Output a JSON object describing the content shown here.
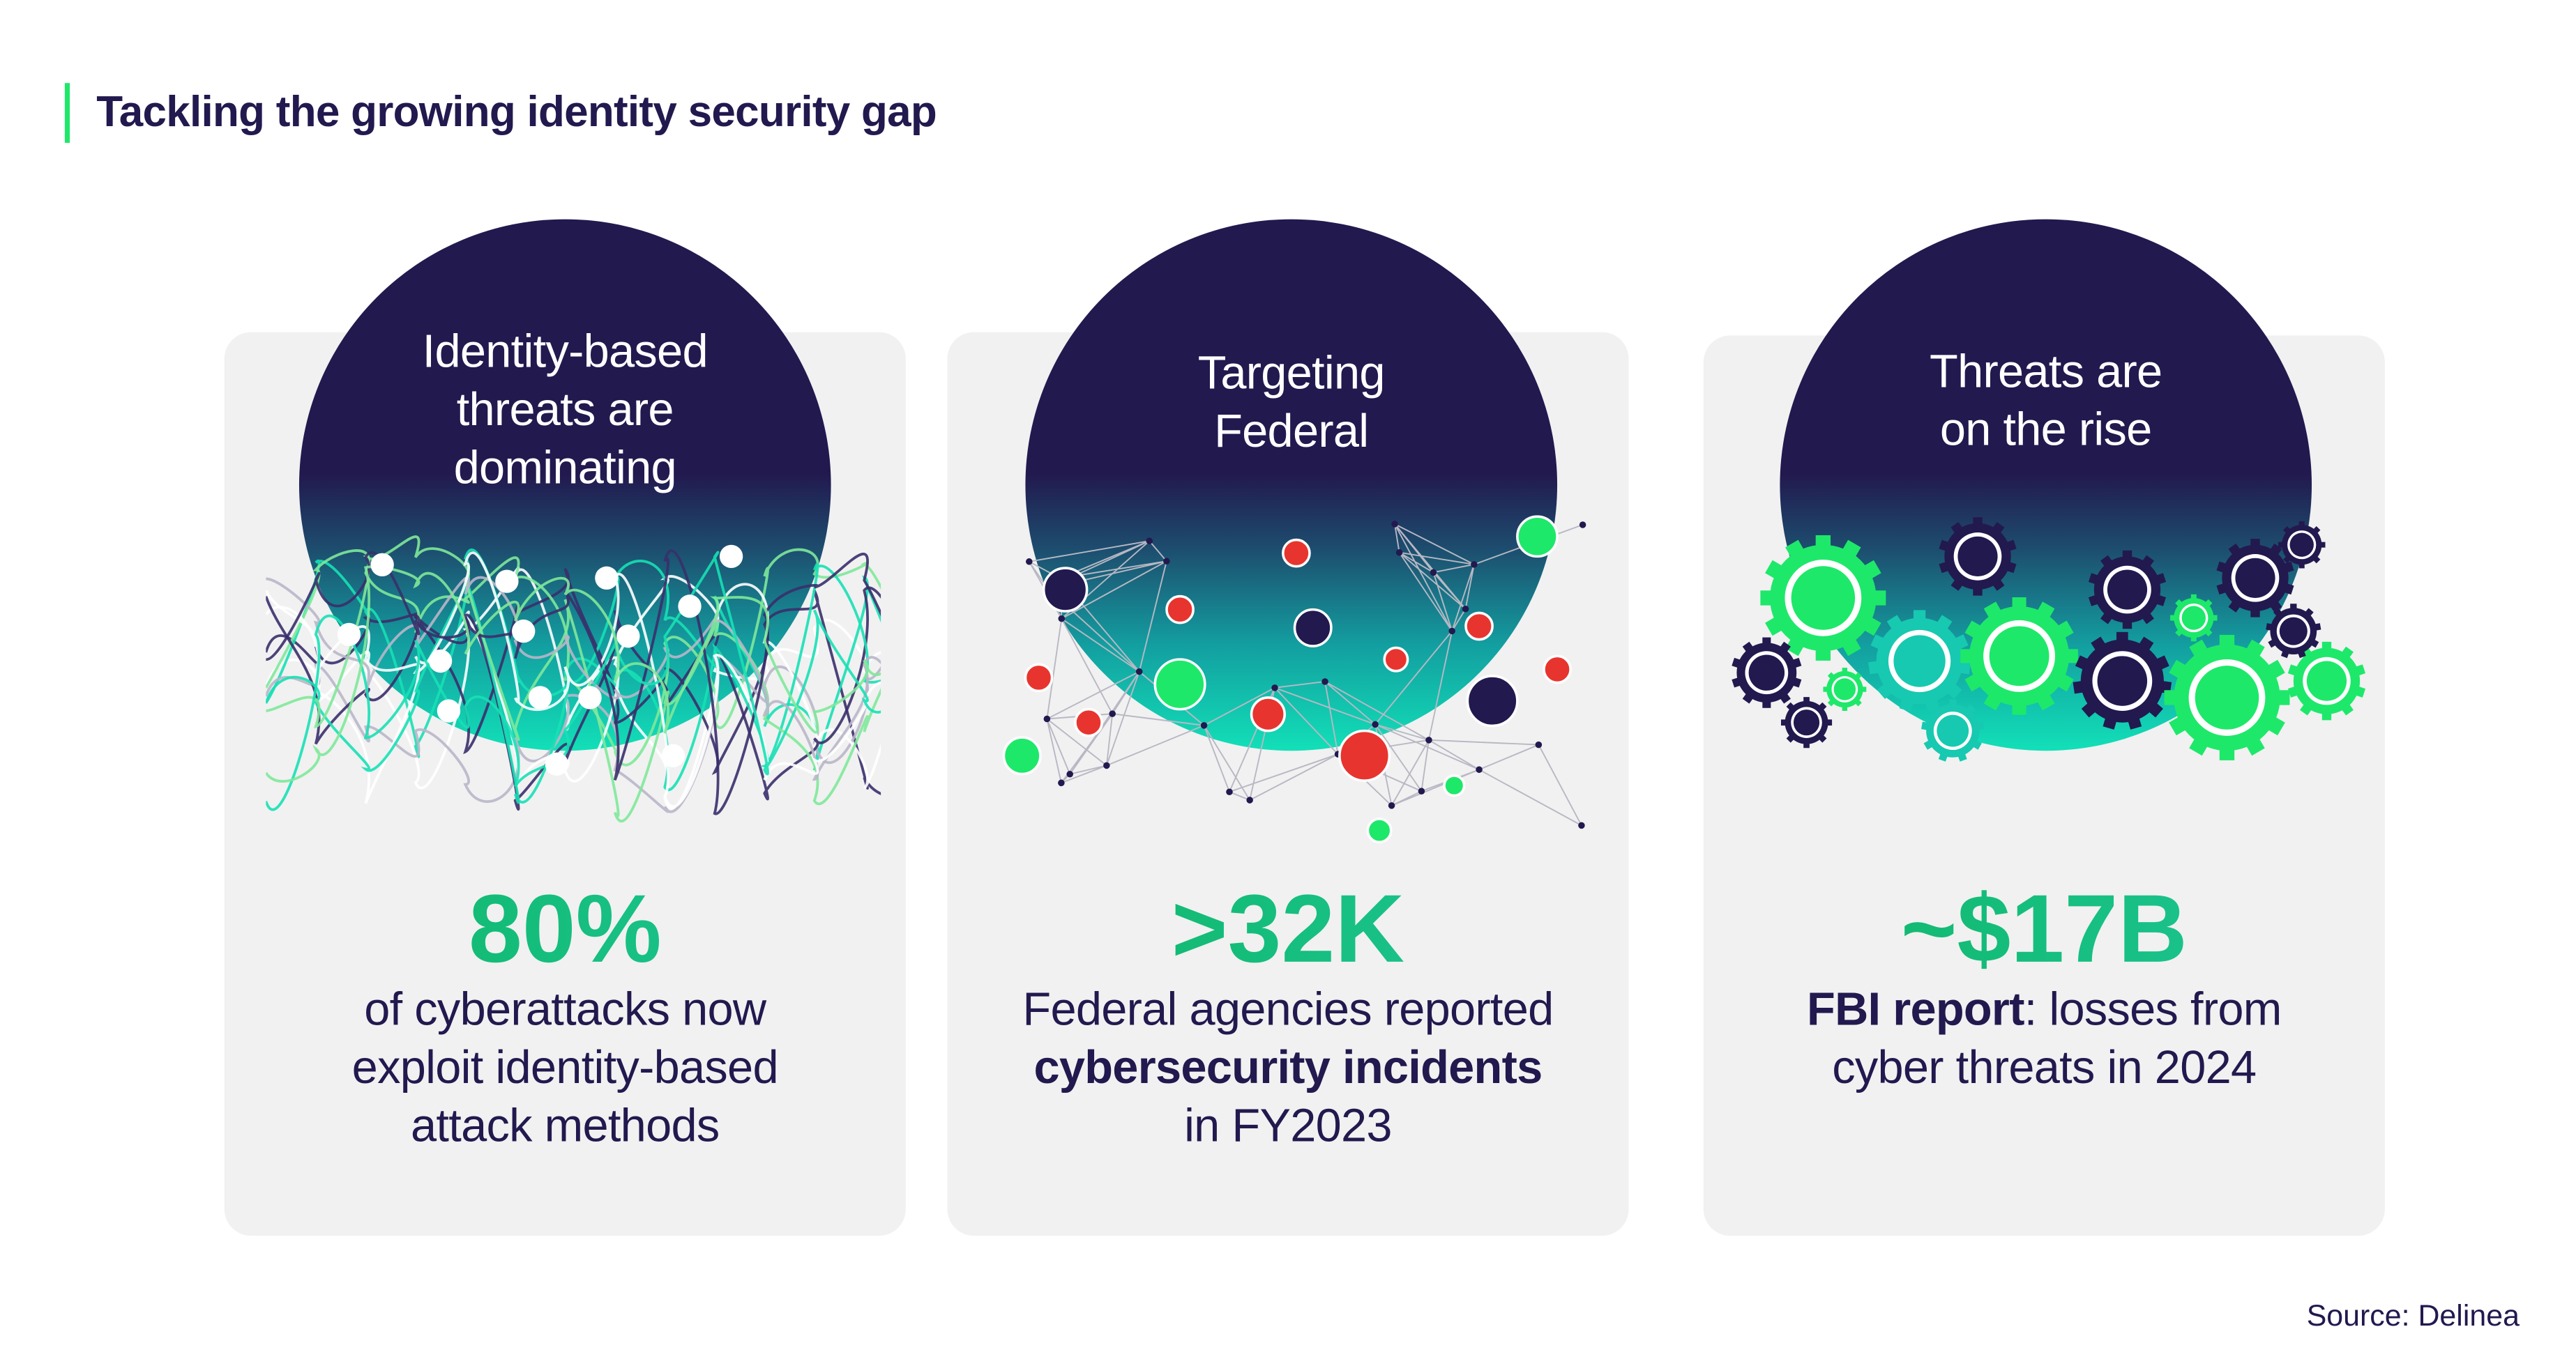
{
  "title": "Tackling the growing identity security gap",
  "colors": {
    "navy": "#22194f",
    "green": "#0db562",
    "teal": "#1fc79b",
    "card_bg": "#f1f1f1",
    "accent_bar": "#1ee86a"
  },
  "cards": [
    {
      "heading": [
        "Identity-based",
        "threats are",
        "dominating"
      ],
      "stat": "80%",
      "desc": [
        {
          "text": "of cyberattacks now"
        },
        {
          "text": "exploit identity-based"
        },
        {
          "text": "attack methods"
        }
      ],
      "illustration": "tangled-network-icons"
    },
    {
      "heading": [
        "Targeting",
        "Federal"
      ],
      "stat": ">32K",
      "desc": [
        {
          "text": "Federal agencies reported"
        },
        {
          "text": "cybersecurity incidents",
          "bold": true
        },
        {
          "text": "in FY2023"
        }
      ],
      "illustration": "threat-node-network"
    },
    {
      "heading": [
        "Threats are",
        "on the rise"
      ],
      "stat": "~$17B",
      "desc_line1_bold": "FBI report",
      "desc_line1_rest": ": losses from",
      "desc": [
        {
          "text": "cyber threats in 2024"
        }
      ],
      "illustration": "security-gears"
    }
  ],
  "source": "Source: Delinea"
}
